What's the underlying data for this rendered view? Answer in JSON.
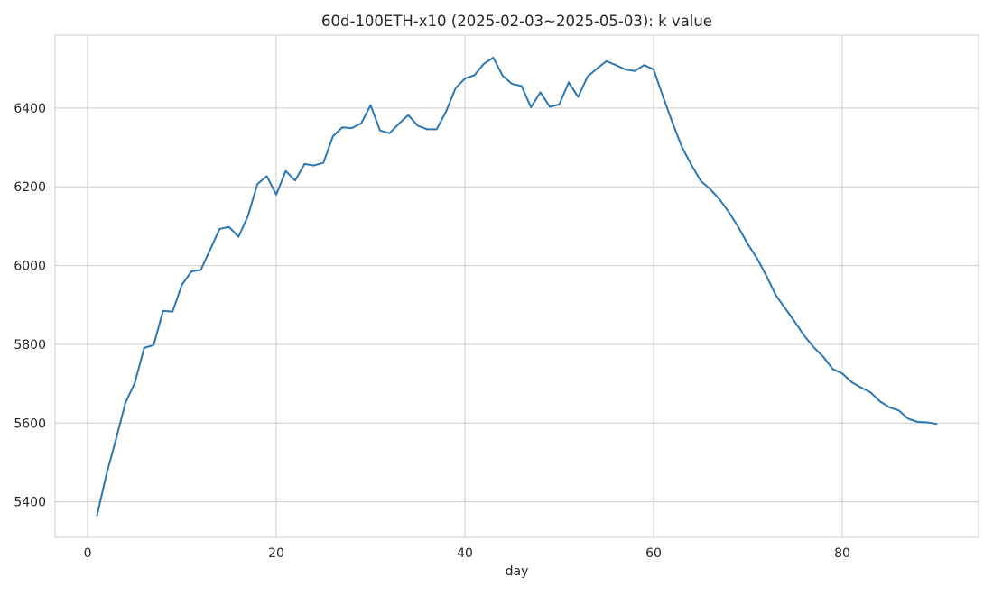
{
  "chart_data": {
    "type": "line",
    "title": "60d-100ETH-x10 (2025-02-03~2025-05-03): k value",
    "xlabel": "day",
    "ylabel": "",
    "xlim": [
      -3.45,
      94.45
    ],
    "ylim": [
      5310,
      6585
    ],
    "xticks": [
      0,
      20,
      40,
      60,
      80
    ],
    "yticks": [
      5400,
      5600,
      5800,
      6000,
      6200,
      6400
    ],
    "grid": true,
    "legend": "none",
    "colors": {
      "line": "#2a77b4",
      "grid": "#cccccc",
      "frame": "#cccccc",
      "text": "#262626"
    },
    "series": [
      {
        "x": [
          1,
          2,
          3,
          4,
          5,
          6,
          7,
          8,
          9,
          10,
          11,
          12,
          13,
          14,
          15,
          16,
          17,
          18,
          19,
          20,
          21,
          22,
          23,
          24,
          25,
          26,
          27,
          28,
          29,
          30,
          31,
          32,
          33,
          34,
          35,
          36,
          37,
          38,
          39,
          40,
          41,
          42,
          43,
          44,
          45,
          46,
          47,
          48,
          49,
          50,
          51,
          52,
          53,
          54,
          55,
          56,
          57,
          58,
          59,
          60,
          61,
          62,
          63,
          64,
          65,
          66,
          67,
          68,
          69,
          70,
          71,
          72,
          73,
          74,
          75,
          76,
          77,
          78,
          79,
          80,
          81,
          82,
          83,
          84,
          85,
          86,
          87,
          88,
          89,
          90
        ],
        "y": [
          5366,
          5470,
          5558,
          5651,
          5702,
          5791,
          5798,
          5885,
          5883,
          5951,
          5985,
          5989,
          6041,
          6093,
          6098,
          6073,
          6126,
          6207,
          6227,
          6180,
          6240,
          6216,
          6258,
          6254,
          6261,
          6328,
          6351,
          6349,
          6361,
          6407,
          6343,
          6336,
          6360,
          6382,
          6355,
          6346,
          6346,
          6391,
          6450,
          6475,
          6483,
          6512,
          6528,
          6482,
          6461,
          6456,
          6402,
          6440,
          6403,
          6409,
          6465,
          6428,
          6480,
          6500,
          6519,
          6509,
          6498,
          6494,
          6509,
          6498,
          6429,
          6363,
          6301,
          6256,
          6215,
          6194,
          6168,
          6135,
          6097,
          6054,
          6017,
          5972,
          5923,
          5890,
          5856,
          5821,
          5792,
          5768,
          5737,
          5726,
          5704,
          5690,
          5678,
          5655,
          5640,
          5632,
          5611,
          5603,
          5602,
          5598
        ]
      }
    ]
  }
}
